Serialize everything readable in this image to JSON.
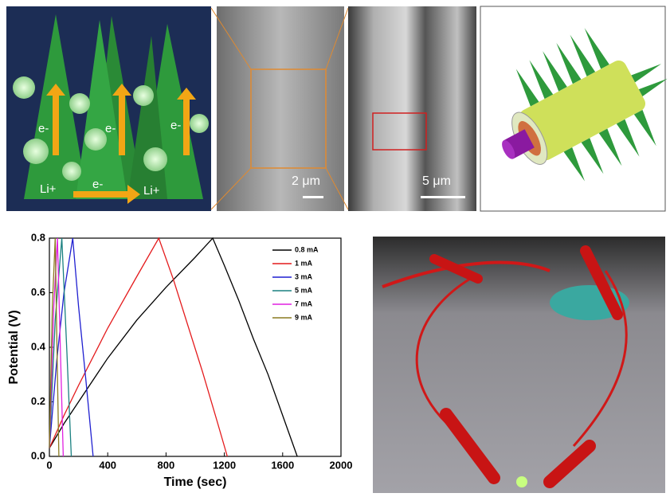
{
  "panels": {
    "schematic": {
      "labels": [
        "e-",
        "e-",
        "e-",
        "Li+",
        "e-",
        "Li+"
      ]
    },
    "sem_low": {
      "scale_bar": "2 μm"
    },
    "sem_high": {
      "scale_bar": "5 μm"
    }
  },
  "chart_data": {
    "type": "line",
    "x_label": "Time (sec)",
    "y_label": "Potential (V)",
    "xlim": [
      0,
      2000
    ],
    "xticks": [
      0,
      400,
      800,
      1200,
      1600,
      2000
    ],
    "ylim": [
      0,
      0.8
    ],
    "yticks": [
      {
        "value": 0,
        "label": "0.0"
      },
      0.2,
      0.4,
      0.6,
      0.8
    ],
    "legend": "upper right",
    "series": [
      {
        "name": "0.8 mA",
        "color": "#000000",
        "x": [
          0,
          100,
          200,
          400,
          600,
          800,
          1000,
          1120,
          1200,
          1300,
          1400,
          1500,
          1600,
          1700
        ],
        "values": [
          0.03,
          0.12,
          0.2,
          0.36,
          0.5,
          0.62,
          0.73,
          0.8,
          0.7,
          0.57,
          0.43,
          0.3,
          0.15,
          0
        ]
      },
      {
        "name": "1 mA",
        "color": "#e41a1c",
        "x": [
          0,
          100,
          200,
          400,
          600,
          750,
          850,
          950,
          1050,
          1150,
          1220
        ],
        "values": [
          0.03,
          0.15,
          0.26,
          0.47,
          0.66,
          0.8,
          0.65,
          0.48,
          0.31,
          0.13,
          0
        ]
      },
      {
        "name": "3 mA",
        "color": "#1f1fd0",
        "x": [
          0,
          50,
          100,
          160,
          200,
          250,
          300
        ],
        "values": [
          0.03,
          0.35,
          0.6,
          0.8,
          0.55,
          0.28,
          0
        ]
      },
      {
        "name": "5 mA",
        "color": "#1a8080",
        "x": [
          0,
          40,
          85,
          120,
          150
        ],
        "values": [
          0.03,
          0.5,
          0.8,
          0.38,
          0
        ]
      },
      {
        "name": "7 mA",
        "color": "#e020e0",
        "x": [
          0,
          30,
          55,
          75,
          95
        ],
        "values": [
          0.03,
          0.55,
          0.8,
          0.4,
          0
        ]
      },
      {
        "name": "9 mA",
        "color": "#8a7a20",
        "x": [
          0,
          20,
          40,
          52,
          65
        ],
        "values": [
          0.03,
          0.55,
          0.8,
          0.4,
          0
        ]
      }
    ]
  }
}
